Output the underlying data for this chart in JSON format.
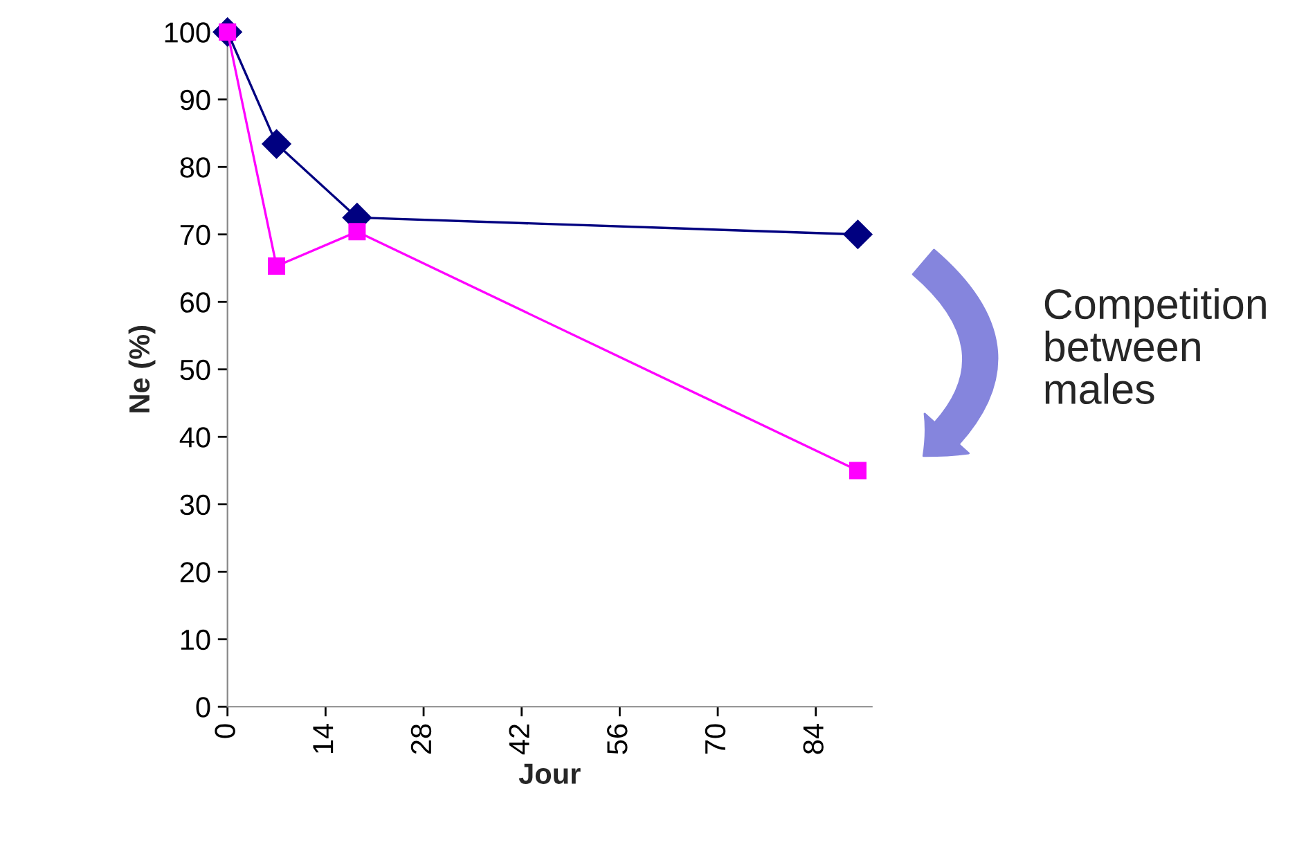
{
  "chart_data": {
    "type": "line",
    "xlabel": "Jour",
    "ylabel": "Ne (%)",
    "annotations": [
      "Competition\nbetween\nmales"
    ],
    "series": [
      {
        "color": "#000080",
        "x": [
          0,
          7,
          18.5,
          90
        ],
        "values": [
          100,
          83.4,
          72.5,
          70
        ],
        "marker": "diamond"
      },
      {
        "color": "#ff00ff",
        "x": [
          0,
          7,
          18.5,
          90
        ],
        "values": [
          100,
          65.3,
          70.4,
          35
        ],
        "marker": "square"
      }
    ],
    "xlim": [
      0,
      92
    ],
    "xticks": [
      0,
      14,
      28,
      42,
      56,
      70,
      84
    ],
    "ylim": [
      0,
      100
    ],
    "yticks": [
      0,
      10,
      20,
      30,
      40,
      50,
      60,
      70,
      80,
      90,
      100
    ],
    "grid": false,
    "legend": false,
    "line_style": "solid"
  }
}
